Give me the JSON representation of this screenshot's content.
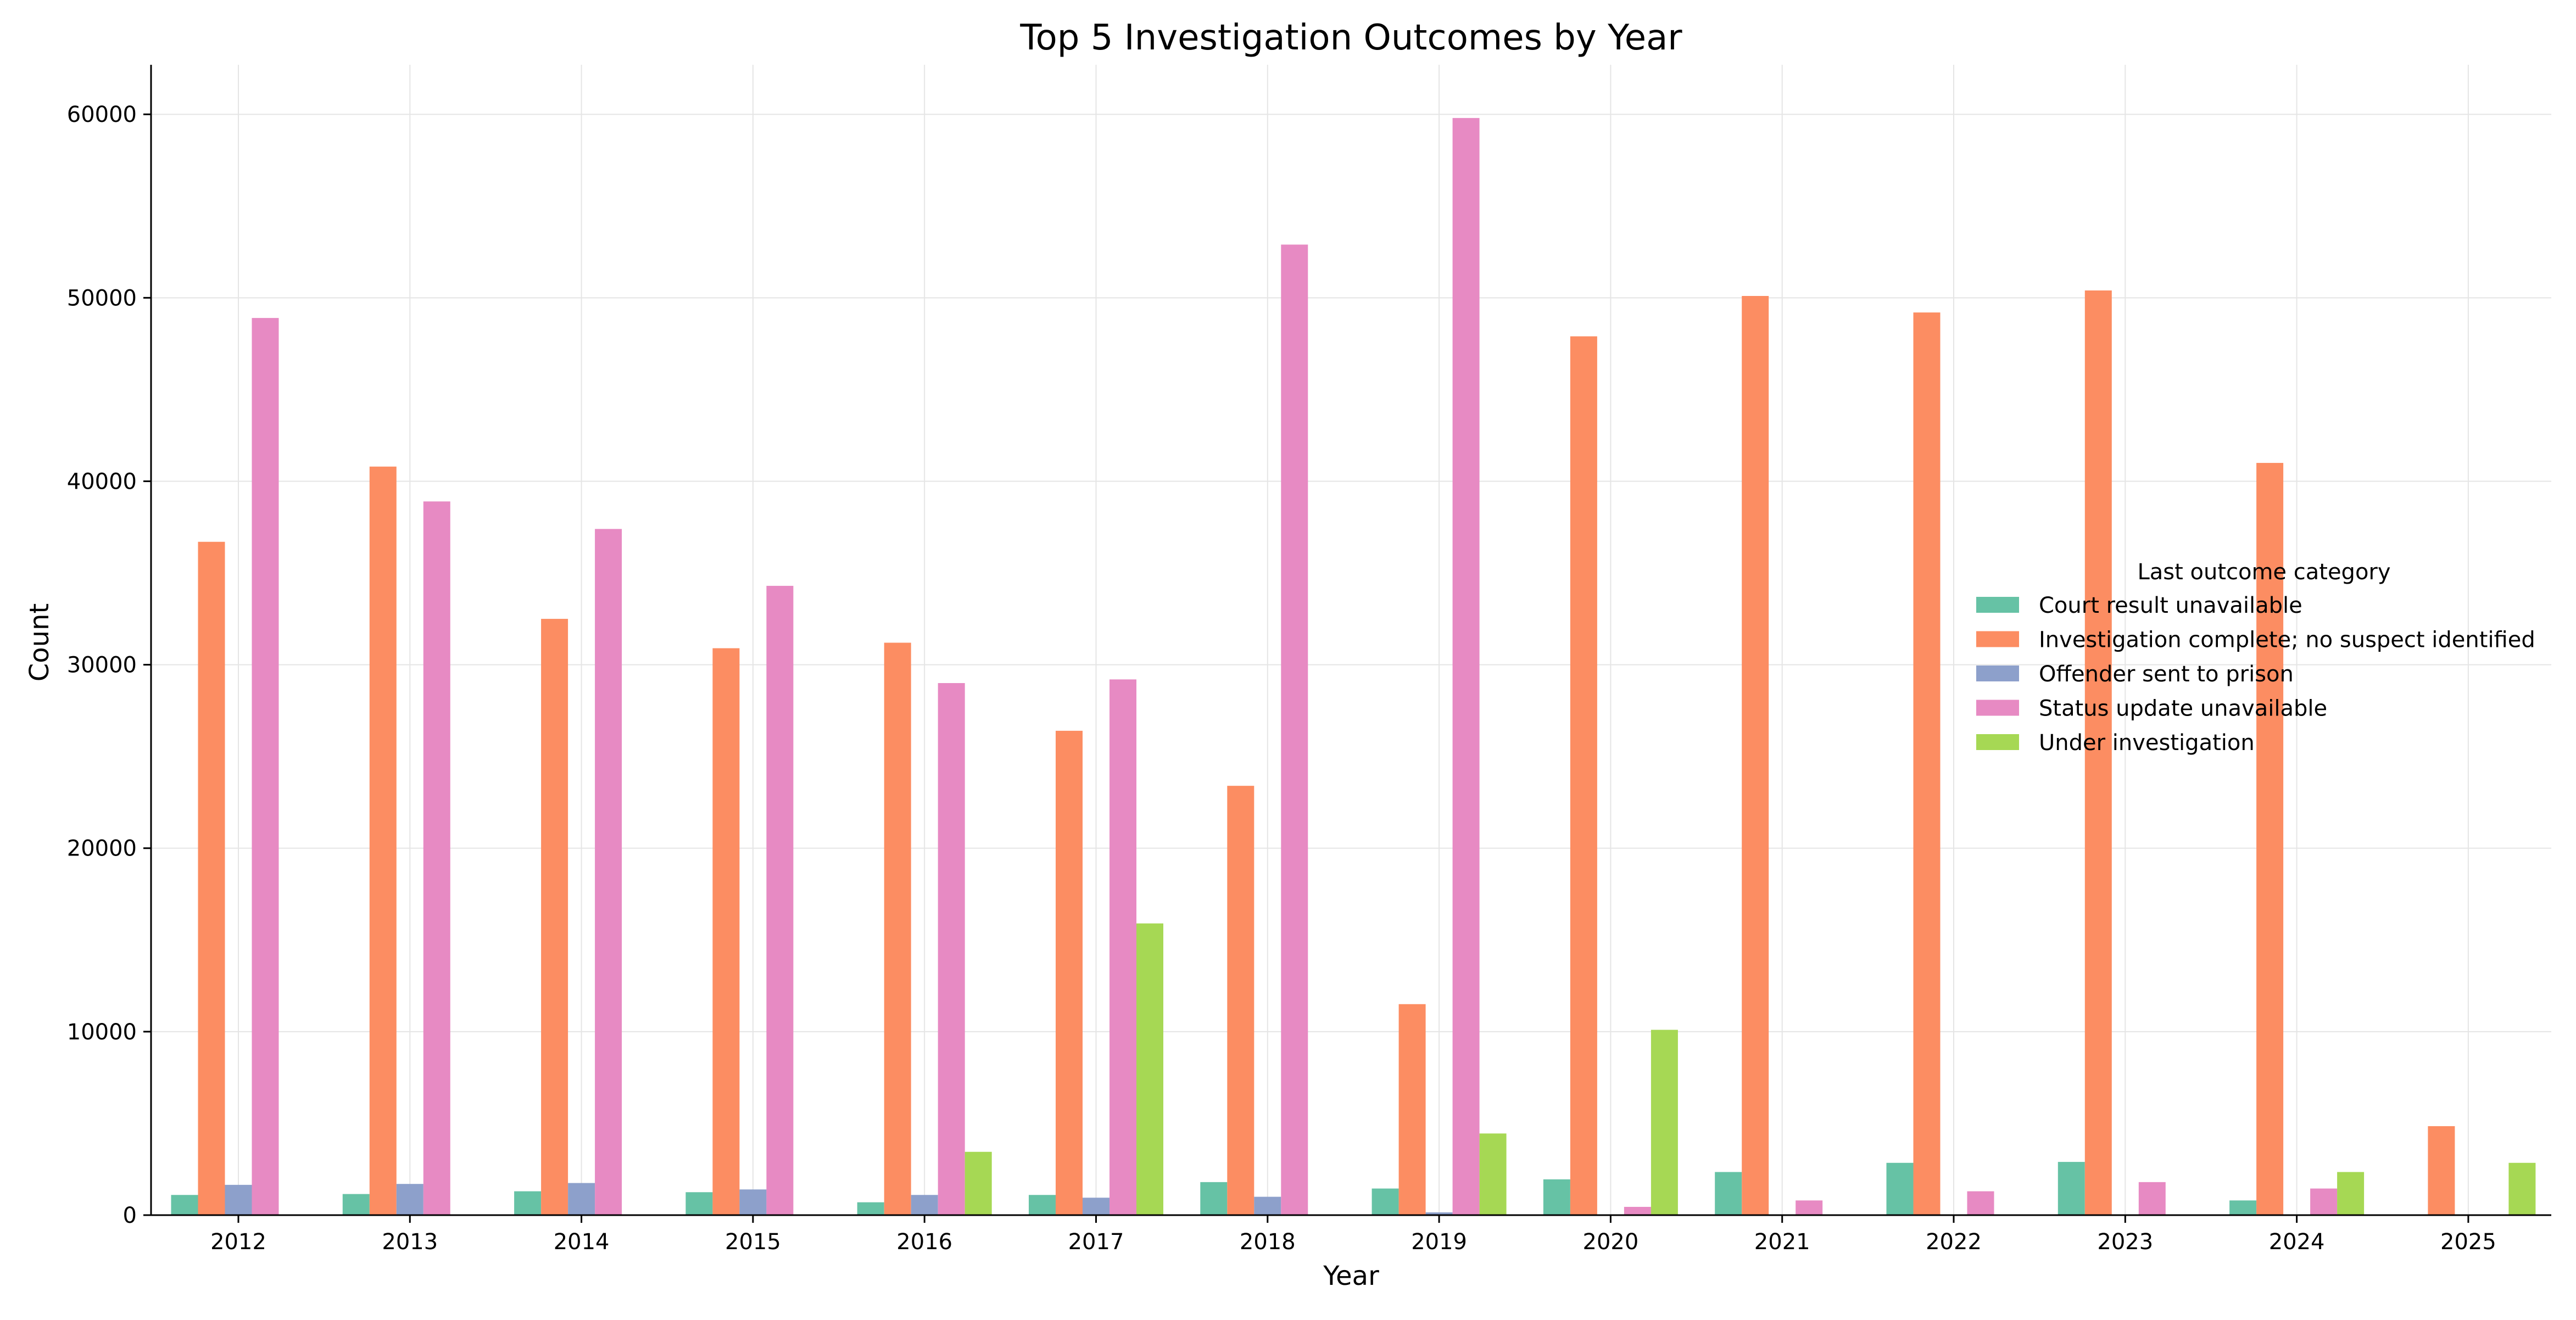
{
  "chart_data": {
    "type": "bar",
    "title": "Top 5 Investigation Outcomes by Year",
    "xlabel": "Year",
    "ylabel": "Count",
    "ylim": [
      0,
      62700
    ],
    "y_ticks": [
      0,
      10000,
      20000,
      30000,
      40000,
      50000,
      60000
    ],
    "grid": true,
    "legend_title": "Last outcome category",
    "legend_position": "center-right",
    "categories": [
      "2012",
      "2013",
      "2014",
      "2015",
      "2016",
      "2017",
      "2018",
      "2019",
      "2020",
      "2021",
      "2022",
      "2023",
      "2024",
      "2025"
    ],
    "series": [
      {
        "name": "Court result unavailable",
        "color": "#66c2a5",
        "values": [
          1100,
          1150,
          1300,
          1250,
          700,
          1100,
          1800,
          1450,
          1950,
          2350,
          2850,
          2900,
          800,
          0
        ]
      },
      {
        "name": "Investigation complete; no suspect identified",
        "color": "#fc8d62",
        "values": [
          36700,
          40800,
          32500,
          30900,
          31200,
          26400,
          23400,
          11500,
          47900,
          50100,
          49200,
          50400,
          41000,
          4850
        ]
      },
      {
        "name": "Offender sent to prison",
        "color": "#8da0cb",
        "values": [
          1650,
          1700,
          1750,
          1400,
          1100,
          950,
          1000,
          150,
          0,
          0,
          0,
          0,
          0,
          0
        ]
      },
      {
        "name": "Status update unavailable",
        "color": "#e78ac3",
        "values": [
          48900,
          38900,
          37400,
          34300,
          29000,
          29200,
          52900,
          59800,
          450,
          800,
          1300,
          1800,
          1450,
          0
        ]
      },
      {
        "name": "Under investigation",
        "color": "#a6d854",
        "values": [
          0,
          0,
          0,
          0,
          3450,
          15900,
          0,
          4450,
          10100,
          0,
          0,
          0,
          2350,
          2850
        ]
      }
    ]
  }
}
